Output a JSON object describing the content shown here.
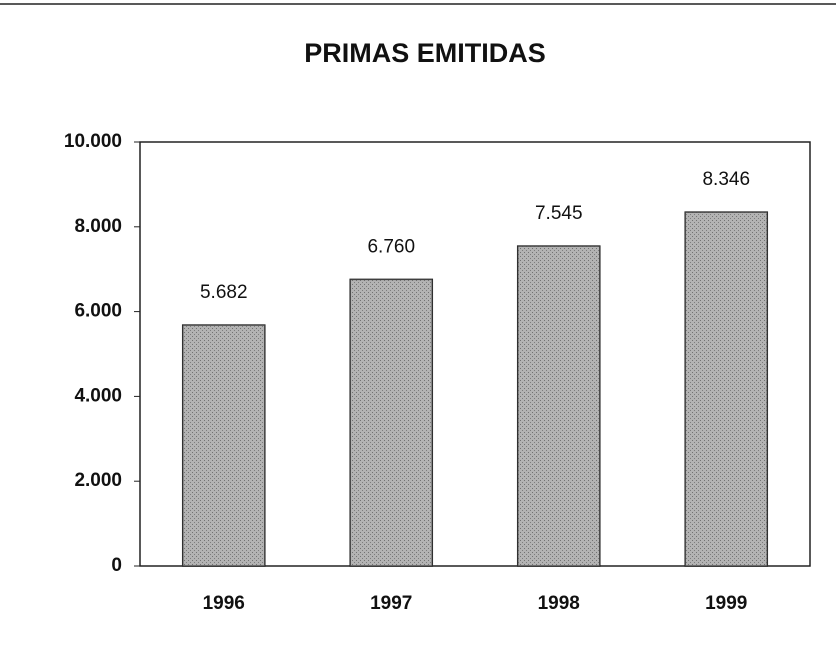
{
  "chart_data": {
    "type": "bar",
    "title": "PRIMAS EMITIDAS",
    "categories": [
      "1996",
      "1997",
      "1998",
      "1999"
    ],
    "values": [
      5682,
      6760,
      7545,
      8346
    ],
    "value_labels": [
      "5.682",
      "6.760",
      "7.545",
      "8.346"
    ],
    "color": "#a9a9a9",
    "ylim": [
      0,
      10000
    ],
    "yticks": [
      0,
      {
        "value": 2000,
        "label": "2.000"
      },
      {
        "value": 4000,
        "label": "4.000"
      },
      {
        "value": 6000,
        "label": "6.000"
      },
      {
        "value": 8000,
        "label": "8.000"
      },
      {
        "value": 10000,
        "label": "10.000"
      }
    ],
    "grid": false
  }
}
